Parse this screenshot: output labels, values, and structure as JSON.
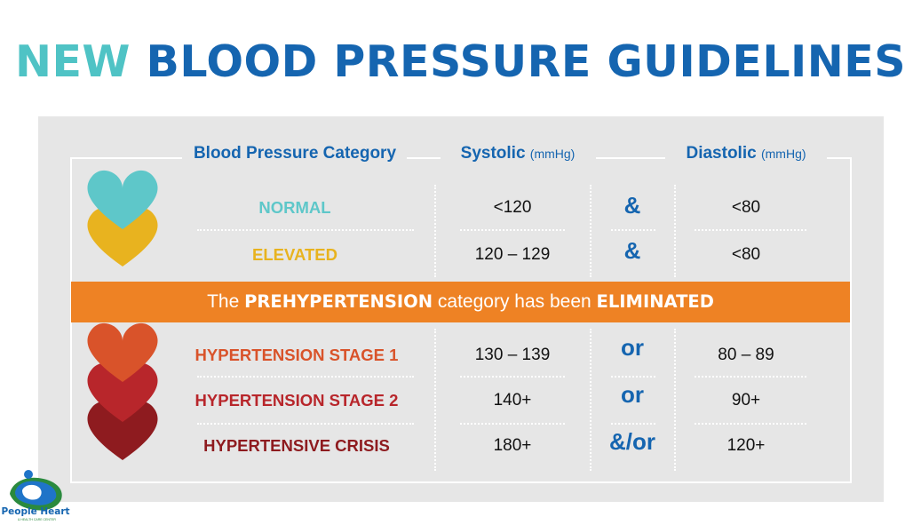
{
  "title": {
    "word1": "NEW",
    "rest": "BLOOD PRESSURE GUIDELINES"
  },
  "headers": {
    "category": "Blood Pressure Category",
    "systolic": "Systolic",
    "systolic_unit": "(mmHg)",
    "diastolic": "Diastolic",
    "diastolic_unit": "(mmHg)"
  },
  "rows": [
    {
      "category": "NORMAL",
      "systolic": "<120",
      "operator": "&",
      "diastolic": "<80",
      "color": "#5ec7c9"
    },
    {
      "category": "ELEVATED",
      "systolic": "120 – 129",
      "operator": "&",
      "diastolic": "<80",
      "color": "#e8b31f"
    },
    {
      "category": "HYPERTENSION STAGE 1",
      "systolic": "130 – 139",
      "operator": "or",
      "diastolic": "80 – 89",
      "color": "#d9532a"
    },
    {
      "category": "HYPERTENSION STAGE 2",
      "systolic": "140+",
      "operator": "or",
      "diastolic": "90+",
      "color": "#b8262b"
    },
    {
      "category": "HYPERTENSIVE CRISIS",
      "systolic": "180+",
      "operator": "&/or",
      "diastolic": "120+",
      "color": "#8e1b1f"
    }
  ],
  "banner": {
    "pre": "The",
    "keyword": "PREHYPERTENSION",
    "mid": "category has been",
    "end": "ELIMINATED"
  },
  "logo": {
    "name": "People Heart",
    "subtitle": "& HEALTH CARE CENTER"
  },
  "colors": {
    "title_accent": "#4fc3c5",
    "title_main": "#1565b0",
    "banner": "#ee8224",
    "panel": "#e6e6e6",
    "heart_normal": "#5ec7c9",
    "heart_elevated": "#e8b31f",
    "heart_stage1": "#d9532a",
    "heart_stage2": "#b8262b",
    "heart_crisis": "#8e1b1f"
  }
}
